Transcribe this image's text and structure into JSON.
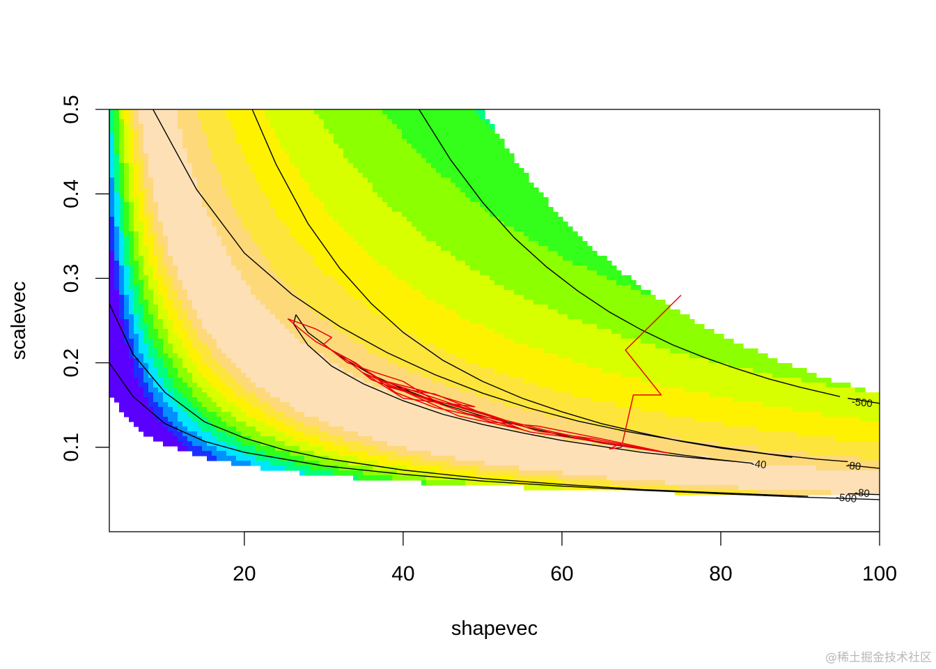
{
  "chart_data": {
    "type": "heatmap",
    "title": "",
    "xlabel": "shapevec",
    "ylabel": "scalevec",
    "xlim": [
      3,
      100
    ],
    "ylim": [
      0.0,
      0.5
    ],
    "x_ticks": [
      20,
      40,
      60,
      80,
      100
    ],
    "y_ticks": [
      0.1,
      0.2,
      0.3,
      0.4,
      0.5
    ],
    "x_tick_labels": [
      "20",
      "40",
      "60",
      "80",
      "100"
    ],
    "y_tick_labels": [
      "0.1",
      "0.2",
      "0.3",
      "0.4",
      "0.5"
    ],
    "grid": false,
    "legend": "none",
    "colors": {
      "palette_high_to_low": [
        "#fde0b6",
        "#fde0b6",
        "#fdd97a",
        "#fde53c",
        "#fff200",
        "#d7ff00",
        "#8cff00",
        "#33ff1a",
        "#00ff80",
        "#00e6ff",
        "#0090ff",
        "#1a30ff",
        "#5a00ff"
      ],
      "contour": "#000000",
      "trace": "#e8000b"
    },
    "contour_lines": [
      {
        "label": "-40",
        "points": [
          [
            26.5,
            0.257
          ],
          [
            28,
            0.236
          ],
          [
            32,
            0.208
          ],
          [
            36,
            0.186
          ],
          [
            40,
            0.169
          ],
          [
            45,
            0.151
          ],
          [
            50,
            0.137
          ],
          [
            55,
            0.125
          ],
          [
            60,
            0.114
          ],
          [
            65,
            0.105
          ],
          [
            70,
            0.098
          ],
          [
            75,
            0.091
          ],
          [
            80,
            0.085
          ],
          [
            84,
            0.081
          ],
          [
            82,
            0.083
          ],
          [
            76,
            0.088
          ],
          [
            70,
            0.094
          ],
          [
            65,
            0.101
          ],
          [
            60,
            0.108
          ],
          [
            55,
            0.117
          ],
          [
            50,
            0.127
          ],
          [
            45,
            0.139
          ],
          [
            40,
            0.155
          ],
          [
            35,
            0.175
          ],
          [
            31,
            0.196
          ],
          [
            28,
            0.221
          ],
          [
            26.2,
            0.246
          ],
          [
            26.5,
            0.257
          ]
        ]
      },
      {
        "label": "-80",
        "points": [
          [
            21,
            0.5
          ],
          [
            24,
            0.435
          ],
          [
            28,
            0.365
          ],
          [
            32,
            0.312
          ],
          [
            36,
            0.27
          ],
          [
            40,
            0.236
          ],
          [
            45,
            0.203
          ],
          [
            50,
            0.178
          ],
          [
            55,
            0.158
          ],
          [
            60,
            0.142
          ],
          [
            65,
            0.128
          ],
          [
            70,
            0.117
          ],
          [
            75,
            0.107
          ],
          [
            80,
            0.099
          ],
          [
            85,
            0.093
          ],
          [
            89,
            0.088
          ]
        ]
      },
      {
        "label": "-80",
        "points": [
          [
            3,
            0.27
          ],
          [
            6,
            0.21
          ],
          [
            10,
            0.165
          ],
          [
            15,
            0.13
          ],
          [
            20,
            0.111
          ],
          [
            25,
            0.097
          ],
          [
            30,
            0.087
          ],
          [
            40,
            0.073
          ],
          [
            50,
            0.063
          ],
          [
            60,
            0.056
          ],
          [
            70,
            0.05
          ],
          [
            80,
            0.046
          ],
          [
            88,
            0.043
          ],
          [
            91,
            0.042
          ]
        ]
      },
      {
        "label": "-80",
        "points": [
          [
            96,
            0.079
          ],
          [
            100,
            0.075
          ]
        ]
      },
      {
        "label": "-80",
        "points": [
          [
            96,
            0.045
          ],
          [
            100,
            0.044
          ]
        ]
      },
      {
        "label": "-500",
        "points": [
          [
            8.5,
            0.5
          ],
          [
            14,
            0.405
          ],
          [
            20,
            0.33
          ],
          [
            26,
            0.281
          ],
          [
            32,
            0.243
          ],
          [
            38,
            0.212
          ],
          [
            44,
            0.186
          ],
          [
            50,
            0.164
          ],
          [
            56,
            0.146
          ],
          [
            62,
            0.131
          ],
          [
            68,
            0.119
          ],
          [
            74,
            0.109
          ],
          [
            80,
            0.1
          ],
          [
            86,
            0.092
          ],
          [
            92,
            0.086
          ],
          [
            96,
            0.083
          ]
        ]
      },
      {
        "label": "-500",
        "points": [
          [
            3,
            0.2
          ],
          [
            6,
            0.16
          ],
          [
            10,
            0.128
          ],
          [
            15,
            0.107
          ],
          [
            20,
            0.094
          ],
          [
            30,
            0.078
          ],
          [
            40,
            0.068
          ],
          [
            50,
            0.06
          ],
          [
            60,
            0.054
          ],
          [
            70,
            0.049
          ],
          [
            80,
            0.045
          ],
          [
            90,
            0.041
          ],
          [
            100,
            0.038
          ]
        ]
      },
      {
        "label": "-500",
        "points": [
          [
            42,
            0.5
          ],
          [
            46,
            0.44
          ],
          [
            50,
            0.39
          ],
          [
            54,
            0.348
          ],
          [
            58,
            0.314
          ],
          [
            62,
            0.285
          ],
          [
            66,
            0.26
          ],
          [
            70,
            0.239
          ],
          [
            74,
            0.221
          ],
          [
            78,
            0.206
          ],
          [
            82,
            0.193
          ],
          [
            86,
            0.181
          ],
          [
            90,
            0.171
          ],
          [
            95,
            0.16
          ]
        ]
      },
      {
        "label": "-500",
        "points": [
          [
            96,
            0.158
          ],
          [
            100,
            0.152
          ]
        ]
      }
    ],
    "contour_labels": [
      {
        "text": "-500",
        "x": 97.8,
        "y": 0.153
      },
      {
        "text": "-80",
        "x": 96.7,
        "y": 0.078
      },
      {
        "text": "-40",
        "x": 84.8,
        "y": 0.08
      },
      {
        "text": "-80",
        "x": 97.8,
        "y": 0.046
      },
      {
        "text": "-500",
        "x": 95.8,
        "y": 0.04
      }
    ],
    "series": [
      {
        "type": "line",
        "points": [
          [
            75,
            0.28
          ],
          [
            68,
            0.215
          ],
          [
            72.5,
            0.162
          ],
          [
            69,
            0.162
          ],
          [
            67.5,
            0.1
          ],
          [
            66,
            0.098
          ],
          [
            67.5,
            0.105
          ],
          [
            73.5,
            0.093
          ],
          [
            60,
            0.113
          ],
          [
            56,
            0.118
          ],
          [
            50,
            0.135
          ],
          [
            44,
            0.147
          ],
          [
            39,
            0.165
          ],
          [
            34,
            0.2
          ],
          [
            32,
            0.21
          ],
          [
            34,
            0.195
          ],
          [
            36,
            0.18
          ],
          [
            42,
            0.16
          ],
          [
            48,
            0.14
          ],
          [
            53,
            0.131
          ],
          [
            38,
            0.172
          ],
          [
            44,
            0.163
          ],
          [
            55,
            0.121
          ],
          [
            47,
            0.137
          ],
          [
            35,
            0.188
          ],
          [
            40,
            0.158
          ],
          [
            49,
            0.148
          ],
          [
            42,
            0.168
          ],
          [
            37,
            0.18
          ],
          [
            46,
            0.152
          ],
          [
            52,
            0.134
          ],
          [
            58,
            0.12
          ],
          [
            64,
            0.108
          ],
          [
            70,
            0.098
          ],
          [
            73.5,
            0.093
          ],
          [
            65,
            0.11
          ],
          [
            57,
            0.125
          ],
          [
            51,
            0.13
          ],
          [
            45,
            0.15
          ],
          [
            38,
            0.175
          ],
          [
            33,
            0.205
          ],
          [
            29,
            0.225
          ],
          [
            27,
            0.24
          ],
          [
            25.5,
            0.252
          ],
          [
            29,
            0.24
          ],
          [
            31,
            0.23
          ],
          [
            30,
            0.222
          ],
          [
            33,
            0.2
          ],
          [
            36,
            0.19
          ],
          [
            40,
            0.178
          ],
          [
            44,
            0.155
          ],
          [
            50,
            0.141
          ],
          [
            57,
            0.119
          ],
          [
            64,
            0.11
          ],
          [
            71,
            0.097
          ]
        ]
      }
    ]
  },
  "watermark": "@稀土掘金技术社区"
}
